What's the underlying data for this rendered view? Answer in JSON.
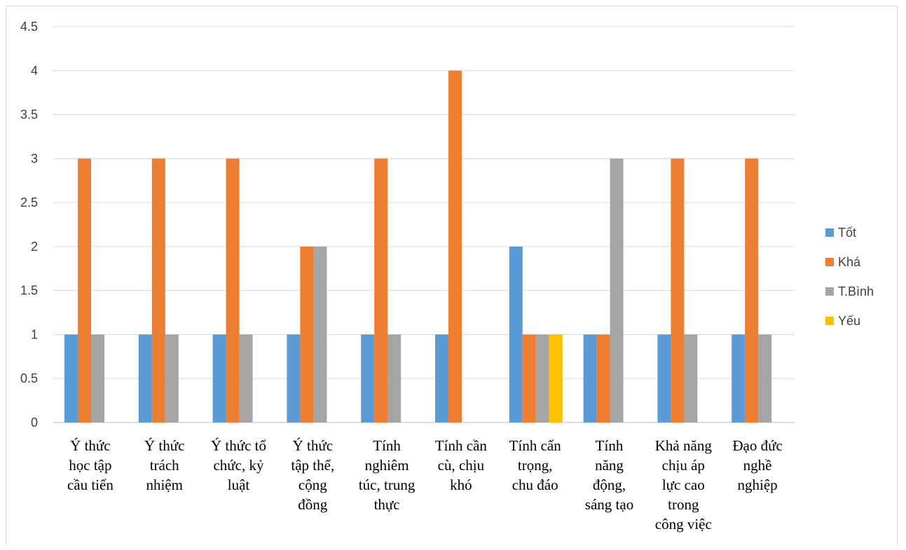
{
  "chart_data": {
    "type": "bar",
    "title": "",
    "xlabel": "",
    "ylabel": "",
    "ylim": [
      0,
      4.5
    ],
    "yticks": [
      "0",
      "0.5",
      "1",
      "1.5",
      "2",
      "2.5",
      "3",
      "3.5",
      "4",
      "4.5"
    ],
    "grid": true,
    "legend_position": "right",
    "categories": [
      [
        "Ý thức",
        "học tập",
        "cầu tiến"
      ],
      [
        "Ý thức",
        "trách",
        "nhiệm"
      ],
      [
        "Ý thức tổ",
        "chức, kỷ",
        "luật"
      ],
      [
        "Ý thức",
        "tập thể,",
        "cộng",
        "đồng"
      ],
      [
        "Tính",
        "nghiêm",
        "túc, trung",
        "thực"
      ],
      [
        "Tính cần",
        "cù, chịu",
        "khó"
      ],
      [
        "Tính cẩn",
        "trọng,",
        "chu đáo"
      ],
      [
        "Tính",
        "năng",
        "động,",
        "sáng tạo"
      ],
      [
        "Khả năng",
        "chịu áp",
        "lực cao",
        "trong",
        "công việc"
      ],
      [
        "Đạo đức",
        "nghề",
        "nghiệp"
      ]
    ],
    "series": [
      {
        "name": "Tốt",
        "color": "#5b9bd5",
        "values": [
          1,
          1,
          1,
          1,
          1,
          1,
          2,
          1,
          1,
          1
        ]
      },
      {
        "name": "Khá",
        "color": "#ed7d31",
        "values": [
          3,
          3,
          3,
          2,
          3,
          4,
          1,
          1,
          3,
          3
        ]
      },
      {
        "name": "T.Bình",
        "color": "#a5a5a5",
        "values": [
          1,
          1,
          1,
          2,
          1,
          0,
          1,
          3,
          1,
          1
        ]
      },
      {
        "name": "Yếu",
        "color": "#ffc000",
        "values": [
          0,
          0,
          0,
          0,
          0,
          0,
          1,
          0,
          0,
          0
        ]
      }
    ]
  }
}
